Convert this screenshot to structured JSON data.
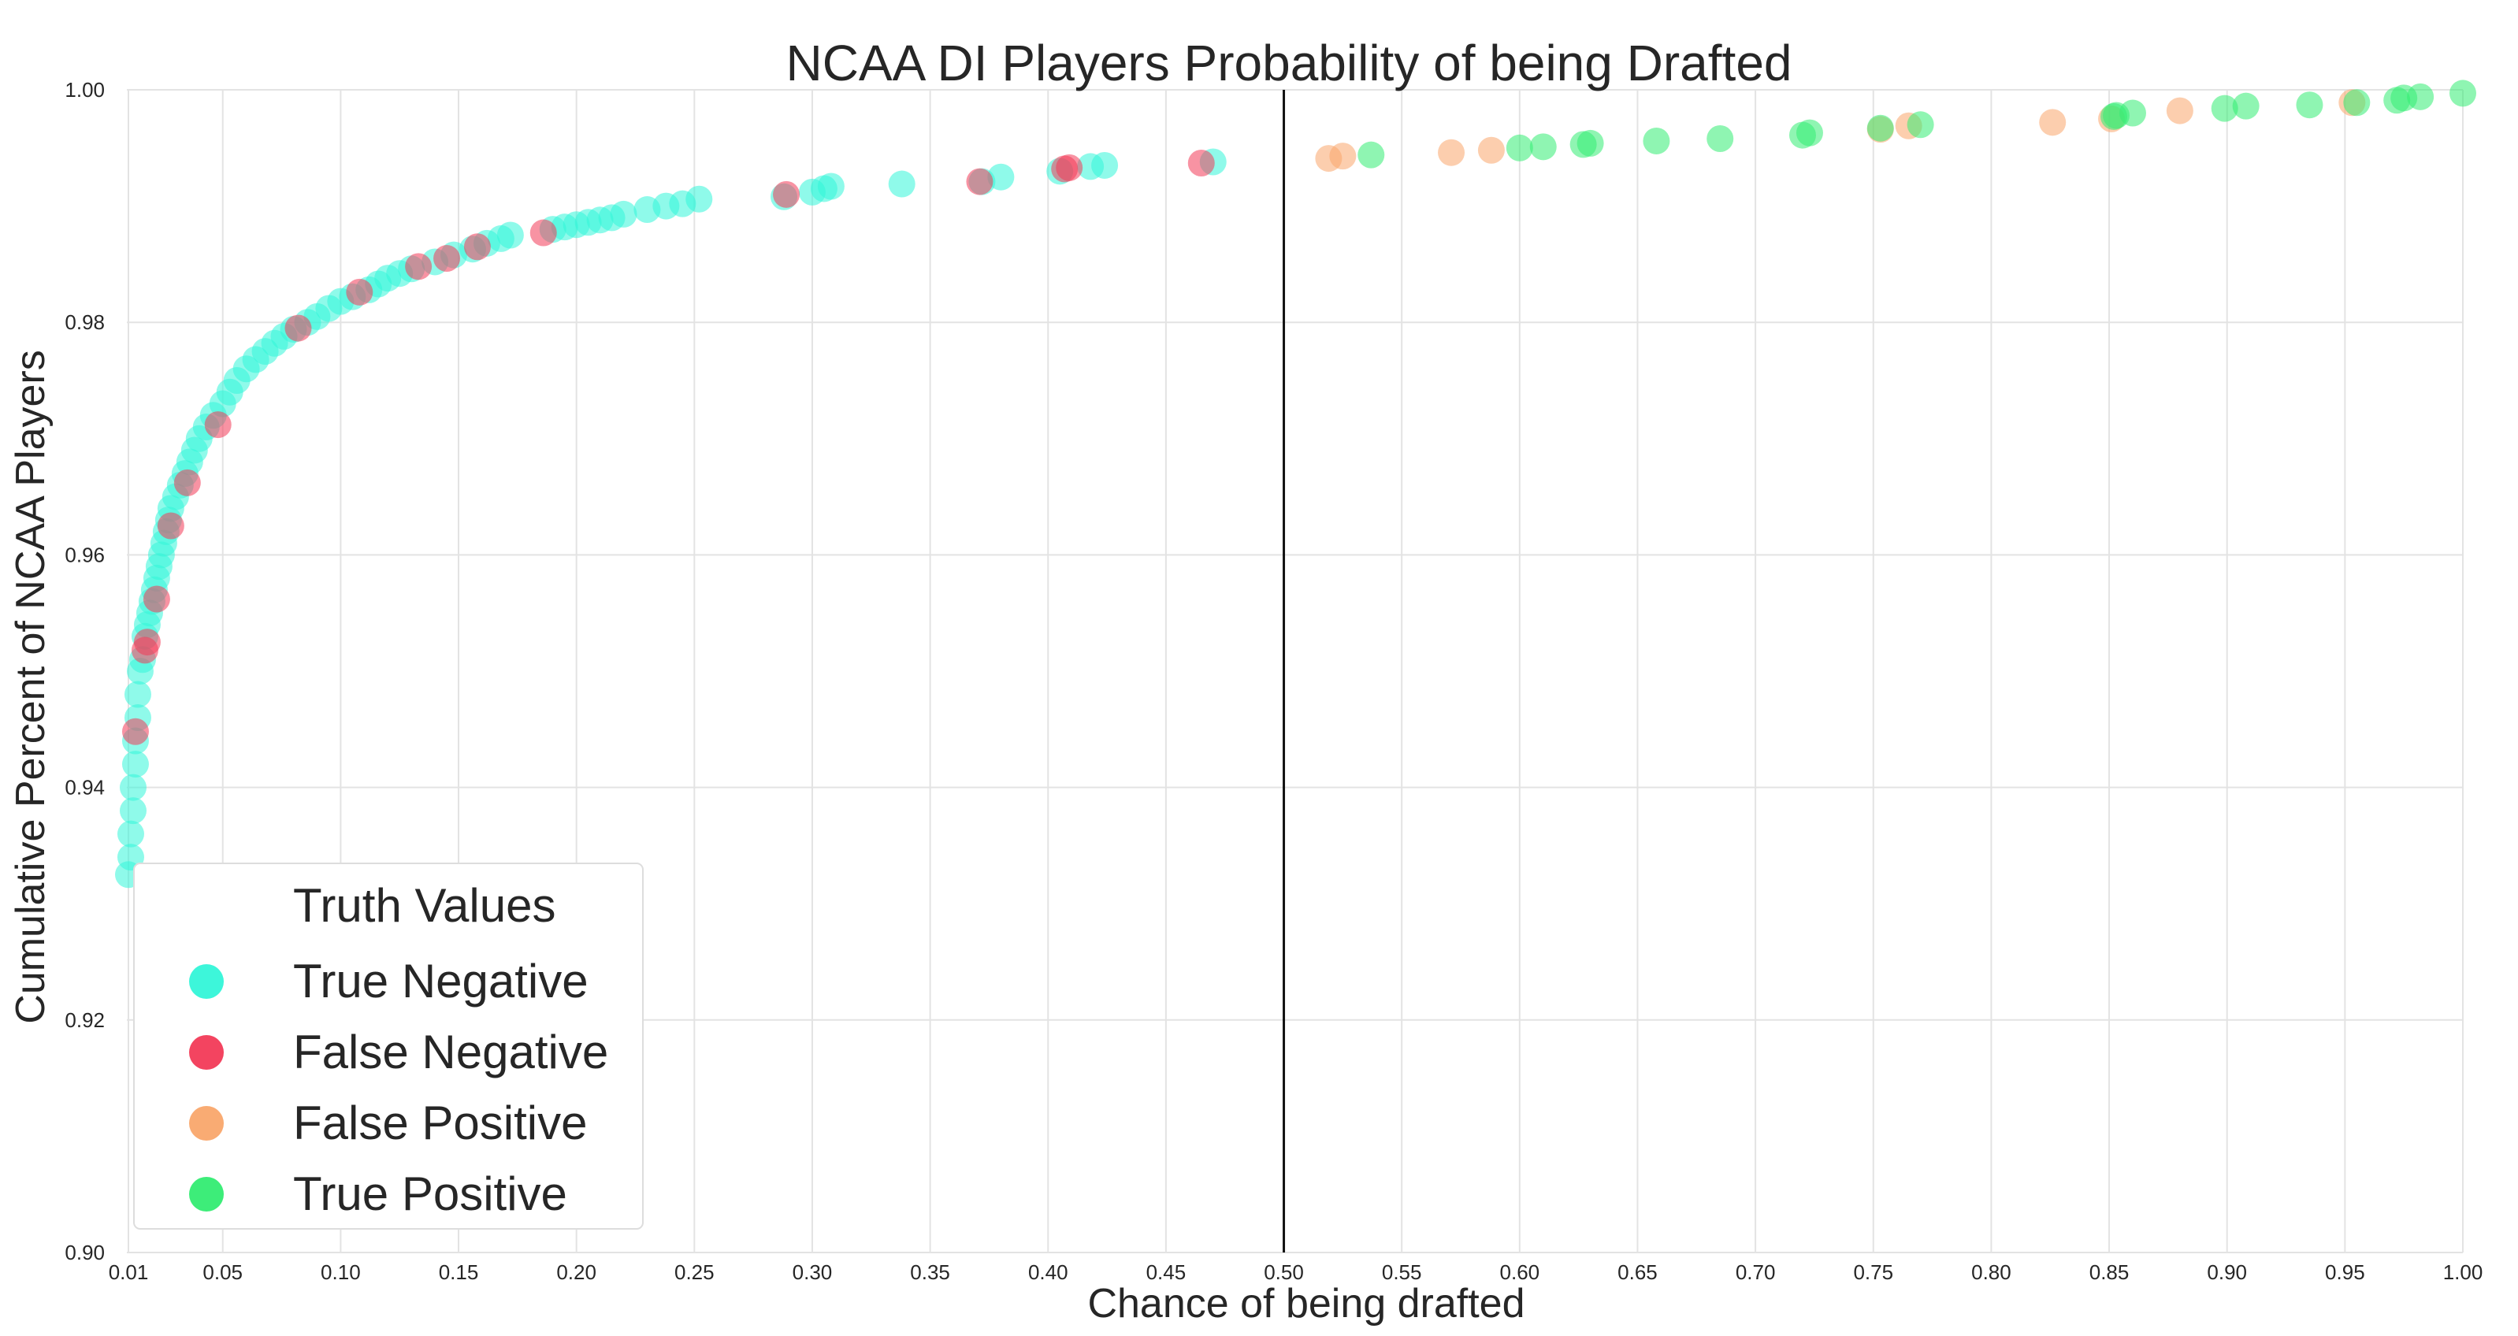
{
  "chart_data": {
    "type": "scatter",
    "title": "NCAA DI Players Probability of being Drafted",
    "xlabel": "Chance of being drafted",
    "ylabel": "Cumulative Percent of NCAA Players",
    "xlim": [
      0.0,
      1.0
    ],
    "ylim": [
      0.9,
      1.0
    ],
    "xticks": [
      "0.01",
      "0.05",
      "0.10",
      "0.15",
      "0.20",
      "0.25",
      "0.30",
      "0.35",
      "0.40",
      "0.45",
      "0.50",
      "0.55",
      "0.60",
      "0.65",
      "0.70",
      "0.75",
      "0.80",
      "0.85",
      "0.90",
      "0.95",
      "1.00"
    ],
    "xtick_values": [
      0.01,
      0.05,
      0.1,
      0.15,
      0.2,
      0.25,
      0.3,
      0.35,
      0.4,
      0.45,
      0.5,
      0.55,
      0.6,
      0.65,
      0.7,
      0.75,
      0.8,
      0.85,
      0.9,
      0.95,
      1.0
    ],
    "yticks": [
      "0.90",
      "0.92",
      "0.94",
      "0.96",
      "0.98",
      "1.00"
    ],
    "ytick_values": [
      0.9,
      0.92,
      0.94,
      0.96,
      0.98,
      1.0
    ],
    "threshold_x": 0.5,
    "grid": true,
    "legend": {
      "title": "Truth Values",
      "placement": "lower-left",
      "entries": [
        "True Negative",
        "False Negative",
        "False Positive",
        "True Positive"
      ]
    },
    "colors": {
      "True Negative": "#33f5d8",
      "False Negative": "#f23a57",
      "False Positive": "#f9a66c",
      "True Positive": "#33ec72",
      "threshold": "#111111"
    },
    "series": [
      {
        "name": "True Negative",
        "points": [
          [
            0.01,
            0.9325
          ],
          [
            0.011,
            0.934
          ],
          [
            0.011,
            0.936
          ],
          [
            0.012,
            0.938
          ],
          [
            0.012,
            0.94
          ],
          [
            0.013,
            0.942
          ],
          [
            0.013,
            0.944
          ],
          [
            0.014,
            0.946
          ],
          [
            0.014,
            0.948
          ],
          [
            0.015,
            0.95
          ],
          [
            0.016,
            0.951
          ],
          [
            0.017,
            0.953
          ],
          [
            0.018,
            0.954
          ],
          [
            0.019,
            0.955
          ],
          [
            0.02,
            0.956
          ],
          [
            0.021,
            0.957
          ],
          [
            0.022,
            0.958
          ],
          [
            0.023,
            0.959
          ],
          [
            0.024,
            0.96
          ],
          [
            0.025,
            0.961
          ],
          [
            0.026,
            0.962
          ],
          [
            0.027,
            0.963
          ],
          [
            0.028,
            0.964
          ],
          [
            0.03,
            0.965
          ],
          [
            0.032,
            0.966
          ],
          [
            0.034,
            0.967
          ],
          [
            0.036,
            0.968
          ],
          [
            0.038,
            0.969
          ],
          [
            0.04,
            0.97
          ],
          [
            0.043,
            0.971
          ],
          [
            0.046,
            0.972
          ],
          [
            0.05,
            0.973
          ],
          [
            0.053,
            0.974
          ],
          [
            0.056,
            0.975
          ],
          [
            0.06,
            0.976
          ],
          [
            0.064,
            0.9768
          ],
          [
            0.068,
            0.9775
          ],
          [
            0.072,
            0.9782
          ],
          [
            0.076,
            0.9788
          ],
          [
            0.08,
            0.9794
          ],
          [
            0.086,
            0.98
          ],
          [
            0.09,
            0.9805
          ],
          [
            0.095,
            0.9812
          ],
          [
            0.1,
            0.9818
          ],
          [
            0.105,
            0.9822
          ],
          [
            0.112,
            0.9828
          ],
          [
            0.116,
            0.9833
          ],
          [
            0.12,
            0.9838
          ],
          [
            0.125,
            0.9842
          ],
          [
            0.13,
            0.9846
          ],
          [
            0.14,
            0.9852
          ],
          [
            0.148,
            0.9858
          ],
          [
            0.156,
            0.9863
          ],
          [
            0.162,
            0.9868
          ],
          [
            0.168,
            0.9872
          ],
          [
            0.172,
            0.9875
          ],
          [
            0.19,
            0.988
          ],
          [
            0.195,
            0.9882
          ],
          [
            0.2,
            0.9884
          ],
          [
            0.205,
            0.9886
          ],
          [
            0.21,
            0.9888
          ],
          [
            0.215,
            0.989
          ],
          [
            0.22,
            0.9893
          ],
          [
            0.23,
            0.9897
          ],
          [
            0.238,
            0.99
          ],
          [
            0.245,
            0.9902
          ],
          [
            0.252,
            0.9906
          ],
          [
            0.288,
            0.9908
          ],
          [
            0.3,
            0.9912
          ],
          [
            0.305,
            0.9915
          ],
          [
            0.308,
            0.9917
          ],
          [
            0.338,
            0.9919
          ],
          [
            0.372,
            0.9921
          ],
          [
            0.38,
            0.9925
          ],
          [
            0.405,
            0.993
          ],
          [
            0.418,
            0.9934
          ],
          [
            0.424,
            0.9935
          ],
          [
            0.47,
            0.9938
          ]
        ]
      },
      {
        "name": "False Negative",
        "points": [
          [
            0.013,
            0.9448
          ],
          [
            0.017,
            0.9518
          ],
          [
            0.018,
            0.9525
          ],
          [
            0.022,
            0.9562
          ],
          [
            0.028,
            0.9625
          ],
          [
            0.035,
            0.9662
          ],
          [
            0.048,
            0.9712
          ],
          [
            0.082,
            0.9795
          ],
          [
            0.108,
            0.9826
          ],
          [
            0.133,
            0.9848
          ],
          [
            0.145,
            0.9855
          ],
          [
            0.158,
            0.9865
          ],
          [
            0.186,
            0.9877
          ],
          [
            0.289,
            0.991
          ],
          [
            0.371,
            0.9921
          ],
          [
            0.407,
            0.9932
          ],
          [
            0.409,
            0.9933
          ],
          [
            0.465,
            0.9937
          ]
        ]
      },
      {
        "name": "False Positive",
        "points": [
          [
            0.519,
            0.9941
          ],
          [
            0.525,
            0.9943
          ],
          [
            0.571,
            0.9946
          ],
          [
            0.588,
            0.9948
          ],
          [
            0.753,
            0.9966
          ],
          [
            0.765,
            0.9969
          ],
          [
            0.826,
            0.9972
          ],
          [
            0.851,
            0.9975
          ],
          [
            0.88,
            0.9982
          ],
          [
            0.953,
            0.9989
          ]
        ]
      },
      {
        "name": "True Positive",
        "points": [
          [
            0.537,
            0.9944
          ],
          [
            0.6,
            0.995
          ],
          [
            0.61,
            0.9951
          ],
          [
            0.627,
            0.9953
          ],
          [
            0.63,
            0.9954
          ],
          [
            0.658,
            0.9956
          ],
          [
            0.685,
            0.9958
          ],
          [
            0.72,
            0.9961
          ],
          [
            0.723,
            0.9963
          ],
          [
            0.753,
            0.9967
          ],
          [
            0.77,
            0.997
          ],
          [
            0.852,
            0.9977
          ],
          [
            0.853,
            0.9978
          ],
          [
            0.86,
            0.998
          ],
          [
            0.899,
            0.9984
          ],
          [
            0.908,
            0.9986
          ],
          [
            0.935,
            0.9987
          ],
          [
            0.955,
            0.9989
          ],
          [
            0.972,
            0.9991
          ],
          [
            0.975,
            0.9993
          ],
          [
            0.982,
            0.9994
          ],
          [
            1.0,
            0.9997
          ]
        ]
      }
    ]
  }
}
